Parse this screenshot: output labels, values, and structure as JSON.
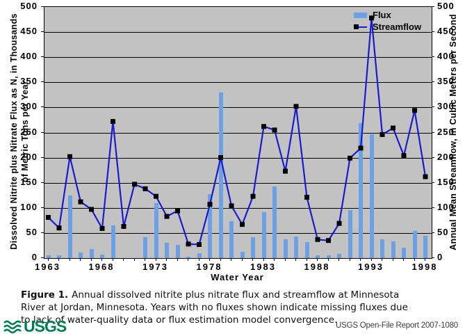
{
  "chart_data": {
    "type": "combo-bar-line",
    "categories": [
      1963,
      1964,
      1965,
      1966,
      1967,
      1968,
      1969,
      1970,
      1971,
      1972,
      1973,
      1974,
      1975,
      1976,
      1977,
      1978,
      1979,
      1980,
      1981,
      1982,
      1983,
      1984,
      1985,
      1986,
      1987,
      1988,
      1989,
      1990,
      1991,
      1992,
      1993,
      1994,
      1995,
      1996,
      1997,
      1998
    ],
    "series": [
      {
        "name": "Flux",
        "type": "bar",
        "color": "#6EA0E6",
        "values": [
          5,
          5,
          124,
          11,
          18,
          7,
          65,
          null,
          null,
          41,
          110,
          31,
          27,
          3,
          10,
          128,
          330,
          73,
          12,
          42,
          91,
          143,
          38,
          43,
          32,
          5,
          6,
          9,
          95,
          269,
          246,
          37,
          33,
          21,
          54,
          44
        ]
      },
      {
        "name": "Streamflow",
        "type": "line",
        "color": "#1A1ACE",
        "marker": "black-square",
        "marker_color": "#000000",
        "values": [
          81,
          60,
          202,
          112,
          97,
          59,
          272,
          63,
          147,
          138,
          123,
          83,
          94,
          28,
          27,
          107,
          200,
          104,
          67,
          123,
          262,
          255,
          173,
          302,
          121,
          37,
          35,
          69,
          199,
          219,
          478,
          246,
          259,
          204,
          294,
          162
        ]
      }
    ],
    "xlabel": "Water Year",
    "ylabel_left_line1": "Dissolved Nitrite plus Nitrate Flux as N, in Thousands",
    "ylabel_left_line2": "of Metric Tons per Year",
    "ylabel_right": "Annual Mean Streamflow, in Cubic Meters per Second",
    "ylim": [
      0,
      500
    ],
    "ytick_step": 50,
    "yticks": [
      0,
      50,
      100,
      150,
      200,
      250,
      300,
      350,
      400,
      450,
      500
    ],
    "xtick_years": [
      1963,
      1968,
      1973,
      1978,
      1983,
      1988,
      1993,
      1998
    ],
    "grid": "horizontal",
    "plot_bg": "#c2c2c2",
    "grid_color": "#000000",
    "legend_position": "top-right-inside"
  },
  "legend": {
    "items": [
      {
        "label": "Flux",
        "glyph": "bar-swatch"
      },
      {
        "label": "Streamflow",
        "glyph": "line-with-square-marker"
      }
    ]
  },
  "caption": {
    "label": "Figure 1.",
    "text": "Annual dissolved nitrite plus nitrate flux and streamflow at Minnesota River at Jordan, Minnesota. Years with no fluxes shown indicate missing fluxes due to lack of water-quality data or flux estimation model convergence."
  },
  "footer": {
    "logo_text": "USGS",
    "logo_color": "#007D52",
    "report": "USGS Open-File Report 2007-1080"
  }
}
